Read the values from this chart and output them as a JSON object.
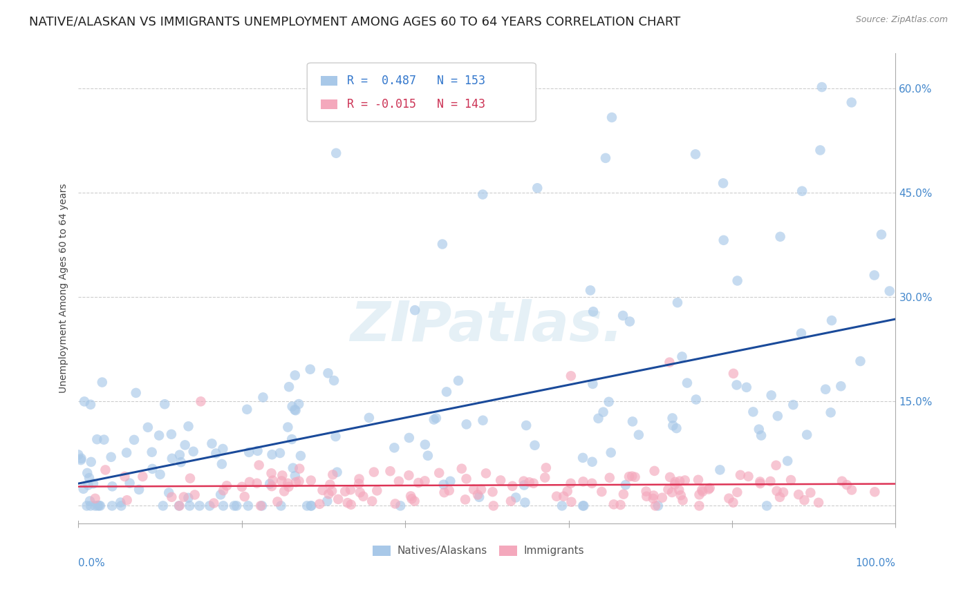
{
  "title": "NATIVE/ALASKAN VS IMMIGRANTS UNEMPLOYMENT AMONG AGES 60 TO 64 YEARS CORRELATION CHART",
  "source": "Source: ZipAtlas.com",
  "ylabel": "Unemployment Among Ages 60 to 64 years",
  "yticks": [
    0.0,
    0.15,
    0.3,
    0.45,
    0.6
  ],
  "ytick_labels": [
    "",
    "15.0%",
    "30.0%",
    "45.0%",
    "60.0%"
  ],
  "xlim": [
    0.0,
    1.0
  ],
  "ylim": [
    -0.025,
    0.65
  ],
  "native_R": 0.487,
  "native_N": 153,
  "immigrant_R": -0.015,
  "immigrant_N": 143,
  "native_color": "#a8c8e8",
  "immigrant_color": "#f4a8bc",
  "native_line_color": "#1a4a9a",
  "immigrant_line_color": "#dd3355",
  "background_color": "#ffffff",
  "watermark": "ZIPatlas.",
  "legend_label_native": "Natives/Alaskans",
  "legend_label_immigrant": "Immigrants",
  "title_fontsize": 13,
  "axis_label_fontsize": 10,
  "tick_fontsize": 11,
  "legend_fontsize": 12
}
